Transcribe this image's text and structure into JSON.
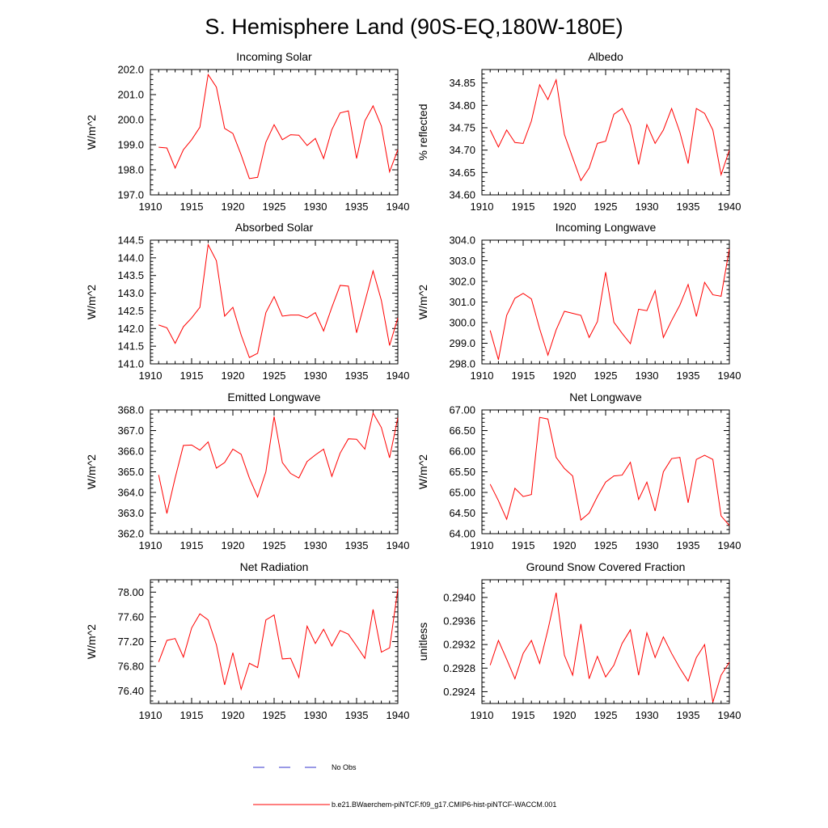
{
  "title": "S. Hemisphere Land (90S-EQ,180W-180E)",
  "colors": {
    "model": "#ff0000",
    "obs": "#3333cc",
    "axis": "#000000"
  },
  "legend": {
    "obs_label": "No Obs",
    "model_label": "b.e21.BWaerchem-piNTCF.f09_g17.CMIP6-hist-piNTCF-WACCM.001"
  },
  "chart_data": [
    {
      "type": "line",
      "title": "Incoming Solar",
      "ylabel": "W/m^2",
      "xlim": [
        1910,
        1940
      ],
      "ylim": [
        197.0,
        202.0
      ],
      "x_ticks": [
        1910,
        1915,
        1920,
        1925,
        1930,
        1935,
        1940
      ],
      "y_ticks": [
        "197.0",
        "198.0",
        "199.0",
        "200.0",
        "201.0",
        "202.0"
      ],
      "series": [
        {
          "x": [
            1911,
            1912,
            1913,
            1914,
            1915,
            1916,
            1917,
            1918,
            1919,
            1920,
            1921,
            1922,
            1923,
            1924,
            1925,
            1926,
            1927,
            1928,
            1929,
            1930,
            1931,
            1932,
            1933,
            1934,
            1935,
            1936,
            1937,
            1938,
            1939,
            1940
          ],
          "values": [
            198.9,
            198.87,
            198.07,
            198.8,
            199.2,
            199.7,
            201.8,
            201.3,
            199.65,
            199.45,
            198.6,
            197.65,
            197.7,
            199.1,
            199.8,
            199.2,
            199.4,
            199.38,
            198.97,
            199.25,
            198.45,
            199.6,
            200.27,
            200.35,
            198.45,
            199.95,
            200.55,
            199.75,
            197.92,
            198.8
          ]
        }
      ]
    },
    {
      "type": "line",
      "title": "Albedo",
      "ylabel": "% reflected",
      "xlim": [
        1910,
        1940
      ],
      "ylim": [
        34.6,
        34.88
      ],
      "x_ticks": [
        1910,
        1915,
        1920,
        1925,
        1930,
        1935,
        1940
      ],
      "y_ticks": [
        "34.60",
        "34.65",
        "34.70",
        "34.75",
        "34.80",
        "34.85"
      ],
      "series": [
        {
          "x": [
            1911,
            1912,
            1913,
            1914,
            1915,
            1916,
            1917,
            1918,
            1919,
            1920,
            1921,
            1922,
            1923,
            1924,
            1925,
            1926,
            1927,
            1928,
            1929,
            1930,
            1931,
            1932,
            1933,
            1934,
            1935,
            1936,
            1937,
            1938,
            1939,
            1940
          ],
          "values": [
            34.745,
            34.707,
            34.745,
            34.717,
            34.715,
            34.765,
            34.846,
            34.813,
            34.857,
            34.735,
            34.683,
            34.632,
            34.66,
            34.715,
            34.72,
            34.78,
            34.793,
            34.755,
            34.668,
            34.757,
            34.715,
            34.745,
            34.793,
            34.74,
            34.67,
            34.793,
            34.782,
            34.745,
            34.645,
            34.7
          ]
        }
      ]
    },
    {
      "type": "line",
      "title": "Absorbed Solar",
      "ylabel": "W/m^2",
      "xlim": [
        1910,
        1940
      ],
      "ylim": [
        141.0,
        144.5
      ],
      "x_ticks": [
        1910,
        1915,
        1920,
        1925,
        1930,
        1935,
        1940
      ],
      "y_ticks": [
        "141.0",
        "141.5",
        "142.0",
        "142.5",
        "143.0",
        "143.5",
        "144.0",
        "144.5"
      ],
      "series": [
        {
          "x": [
            1911,
            1912,
            1913,
            1914,
            1915,
            1916,
            1917,
            1918,
            1919,
            1920,
            1921,
            1922,
            1923,
            1924,
            1925,
            1926,
            1927,
            1928,
            1929,
            1930,
            1931,
            1932,
            1933,
            1934,
            1935,
            1936,
            1937,
            1938,
            1939,
            1940
          ],
          "values": [
            142.1,
            142.02,
            141.58,
            142.05,
            142.3,
            142.6,
            144.37,
            143.92,
            142.35,
            142.6,
            141.82,
            141.18,
            141.3,
            142.45,
            142.9,
            142.35,
            142.38,
            142.38,
            142.3,
            142.45,
            141.93,
            142.6,
            143.22,
            143.2,
            141.88,
            142.75,
            143.63,
            142.8,
            141.52,
            142.3
          ]
        }
      ]
    },
    {
      "type": "line",
      "title": "Incoming Longwave",
      "ylabel": "W/m^2",
      "xlim": [
        1910,
        1940
      ],
      "ylim": [
        298.0,
        304.0
      ],
      "x_ticks": [
        1910,
        1915,
        1920,
        1925,
        1930,
        1935,
        1940
      ],
      "y_ticks": [
        "298.0",
        "299.0",
        "300.0",
        "301.0",
        "302.0",
        "303.0",
        "304.0"
      ],
      "series": [
        {
          "x": [
            1911,
            1912,
            1913,
            1914,
            1915,
            1916,
            1917,
            1918,
            1919,
            1920,
            1921,
            1922,
            1923,
            1924,
            1925,
            1926,
            1927,
            1928,
            1929,
            1930,
            1931,
            1932,
            1933,
            1934,
            1935,
            1936,
            1937,
            1938,
            1939,
            1940
          ],
          "values": [
            299.62,
            298.2,
            300.35,
            301.18,
            301.42,
            301.15,
            299.7,
            298.42,
            299.65,
            300.55,
            300.45,
            300.35,
            299.28,
            300.05,
            302.45,
            300.02,
            299.48,
            298.98,
            300.65,
            300.58,
            301.55,
            299.28,
            300.1,
            300.85,
            301.85,
            300.3,
            301.95,
            301.35,
            301.28,
            303.58
          ]
        }
      ]
    },
    {
      "type": "line",
      "title": "Emitted Longwave",
      "ylabel": "W/m^2",
      "xlim": [
        1910,
        1940
      ],
      "ylim": [
        362.0,
        368.0
      ],
      "x_ticks": [
        1910,
        1915,
        1920,
        1925,
        1930,
        1935,
        1940
      ],
      "y_ticks": [
        "362.0",
        "363.0",
        "364.0",
        "365.0",
        "366.0",
        "367.0",
        "368.0"
      ],
      "series": [
        {
          "x": [
            1911,
            1912,
            1913,
            1914,
            1915,
            1916,
            1917,
            1918,
            1919,
            1920,
            1921,
            1922,
            1923,
            1924,
            1925,
            1926,
            1927,
            1928,
            1929,
            1930,
            1931,
            1932,
            1933,
            1934,
            1935,
            1936,
            1937,
            1938,
            1939,
            1940
          ],
          "values": [
            364.85,
            362.98,
            364.7,
            366.28,
            366.3,
            366.05,
            366.45,
            365.18,
            365.45,
            366.1,
            365.85,
            364.7,
            363.78,
            365.0,
            367.68,
            365.45,
            364.92,
            364.7,
            365.5,
            365.82,
            366.1,
            364.78,
            365.9,
            366.6,
            366.58,
            366.1,
            367.85,
            367.15,
            365.68,
            367.62
          ]
        }
      ]
    },
    {
      "type": "line",
      "title": "Net Longwave",
      "ylabel": "W/m^2",
      "xlim": [
        1910,
        1940
      ],
      "ylim": [
        64.0,
        67.0
      ],
      "x_ticks": [
        1910,
        1915,
        1920,
        1925,
        1930,
        1935,
        1940
      ],
      "y_ticks": [
        "64.00",
        "64.50",
        "65.00",
        "65.50",
        "66.00",
        "66.50",
        "67.00"
      ],
      "series": [
        {
          "x": [
            1911,
            1912,
            1913,
            1914,
            1915,
            1916,
            1917,
            1918,
            1919,
            1920,
            1921,
            1922,
            1923,
            1924,
            1925,
            1926,
            1927,
            1928,
            1929,
            1930,
            1931,
            1932,
            1933,
            1934,
            1935,
            1936,
            1937,
            1938,
            1939,
            1940
          ],
          "values": [
            65.2,
            64.8,
            64.35,
            65.1,
            64.9,
            64.95,
            66.82,
            66.78,
            65.85,
            65.58,
            65.4,
            64.33,
            64.5,
            64.9,
            65.25,
            65.4,
            65.42,
            65.73,
            64.83,
            65.25,
            64.55,
            65.5,
            65.82,
            65.85,
            64.75,
            65.8,
            65.9,
            65.8,
            64.43,
            64.2
          ]
        }
      ]
    },
    {
      "type": "line",
      "title": "Net Radiation",
      "ylabel": "W/m^2",
      "xlim": [
        1910,
        1940
      ],
      "ylim": [
        76.2,
        78.2
      ],
      "x_ticks": [
        1910,
        1915,
        1920,
        1925,
        1930,
        1935,
        1940
      ],
      "y_ticks": [
        "76.40",
        "76.80",
        "77.20",
        "77.60",
        "78.00"
      ],
      "series": [
        {
          "x": [
            1911,
            1912,
            1913,
            1914,
            1915,
            1916,
            1917,
            1918,
            1919,
            1920,
            1921,
            1922,
            1923,
            1924,
            1925,
            1926,
            1927,
            1928,
            1929,
            1930,
            1931,
            1932,
            1933,
            1934,
            1935,
            1936,
            1937,
            1938,
            1939,
            1940
          ],
          "values": [
            76.87,
            77.22,
            77.25,
            76.95,
            77.42,
            77.65,
            77.55,
            77.15,
            76.5,
            77.02,
            76.43,
            76.85,
            76.78,
            77.55,
            77.63,
            76.92,
            76.93,
            76.62,
            77.45,
            77.17,
            77.4,
            77.13,
            77.38,
            77.32,
            77.13,
            76.93,
            77.72,
            77.03,
            77.1,
            78.05
          ]
        }
      ]
    },
    {
      "type": "line",
      "title": "Ground Snow Covered Fraction",
      "ylabel": "unitless",
      "xlim": [
        1910,
        1940
      ],
      "ylim": [
        0.2922,
        0.2943
      ],
      "x_ticks": [
        1910,
        1915,
        1920,
        1925,
        1930,
        1935,
        1940
      ],
      "y_ticks": [
        "0.2924",
        "0.2928",
        "0.2932",
        "0.2936",
        "0.2940"
      ],
      "series": [
        {
          "x": [
            1911,
            1912,
            1913,
            1914,
            1915,
            1916,
            1917,
            1918,
            1919,
            1920,
            1921,
            1922,
            1923,
            1924,
            1925,
            1926,
            1927,
            1928,
            1929,
            1930,
            1931,
            1932,
            1933,
            1934,
            1935,
            1936,
            1937,
            1938,
            1939,
            1940
          ],
          "values": [
            0.29285,
            0.29327,
            0.29295,
            0.29262,
            0.29305,
            0.29327,
            0.29288,
            0.29345,
            0.29408,
            0.29302,
            0.29268,
            0.29355,
            0.29262,
            0.293,
            0.29265,
            0.29285,
            0.29322,
            0.29345,
            0.29268,
            0.2934,
            0.29298,
            0.29333,
            0.29305,
            0.2928,
            0.29258,
            0.29298,
            0.2932,
            0.29222,
            0.29268,
            0.2929
          ]
        }
      ]
    }
  ]
}
